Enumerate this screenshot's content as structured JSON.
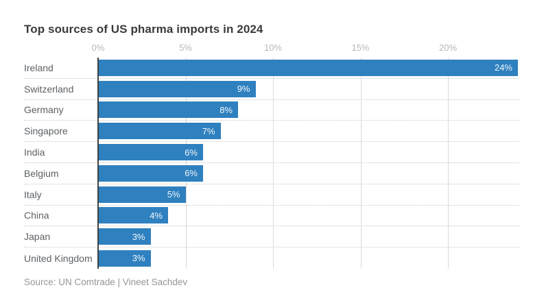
{
  "title": "Top sources of US pharma imports in 2024",
  "source": "Source: UN Comtrade | Vineet Sachdev",
  "colors": {
    "bar": "#2f80bf",
    "axis_line": "#3f4142",
    "gridline": "#dadada",
    "title_text": "#3a3a3a",
    "category_text": "#5d6165",
    "tick_text": "#b5b8ba",
    "value_text_on_bar": "#ffffff",
    "source_text": "#939699",
    "background": "#ffffff"
  },
  "chart_data": {
    "type": "bar",
    "orientation": "horizontal",
    "title": "Top sources of US pharma imports in 2024",
    "xlabel": "",
    "ylabel": "",
    "categories": [
      "Ireland",
      "Switzerland",
      "Germany",
      "Singapore",
      "India",
      "Belgium",
      "Italy",
      "China",
      "Japan",
      "United Kingdom"
    ],
    "values": [
      24,
      9,
      8,
      7,
      6,
      6,
      5,
      4,
      3,
      3
    ],
    "value_labels": [
      "24%",
      "9%",
      "8%",
      "7%",
      "6%",
      "6%",
      "5%",
      "4%",
      "3%",
      "3%"
    ],
    "xlim": [
      0,
      24
    ],
    "x_tick_values": [
      0,
      5,
      10,
      15,
      20
    ],
    "x_tick_labels": [
      "0%",
      "5%",
      "10%",
      "15%",
      "20%"
    ],
    "grid": "vertical-gridlines-behind-bars",
    "legend": "none",
    "value_labels_position": "inside-end"
  }
}
